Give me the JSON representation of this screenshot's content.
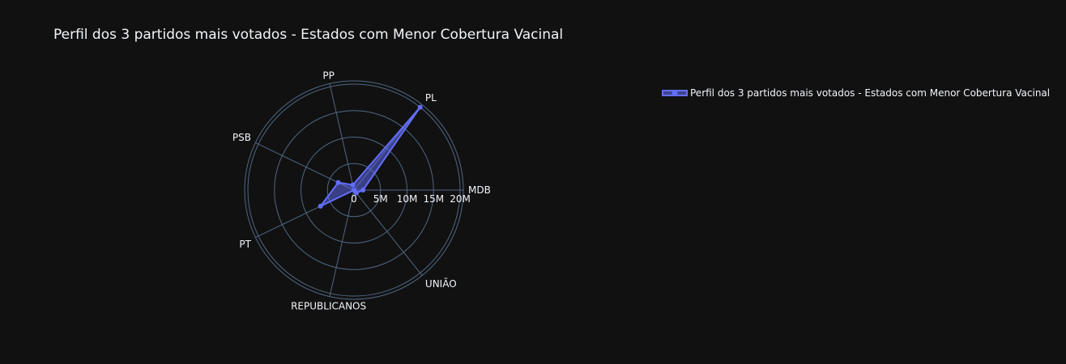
{
  "chart_data": {
    "type": "radar",
    "title": "Perfil dos 3 partidos mais votados - Estados com Menor Cobertura Vacinal",
    "categories": [
      "MDB",
      "PL",
      "PP",
      "PSB",
      "PT",
      "REPUBLICANOS",
      "UNIÃO"
    ],
    "series": [
      {
        "name": "Perfil dos 3 partidos mais votados - Estados com Menor Cobertura Vacinal",
        "values": [
          1700000,
          20000000,
          1000000,
          3300000,
          7000000,
          0,
          700000
        ]
      }
    ],
    "radial_range": [
      0,
      20000000
    ],
    "radial_ticks": [
      0,
      5000000,
      10000000,
      15000000,
      20000000
    ],
    "radial_tick_labels": [
      "0",
      "5M",
      "10M",
      "15M",
      "20M"
    ],
    "grid": true,
    "legend_position": "top-right",
    "colors": {
      "background": "#111111",
      "series": "#636efa",
      "grid": "#506784",
      "text": "#f2f5fa"
    }
  }
}
